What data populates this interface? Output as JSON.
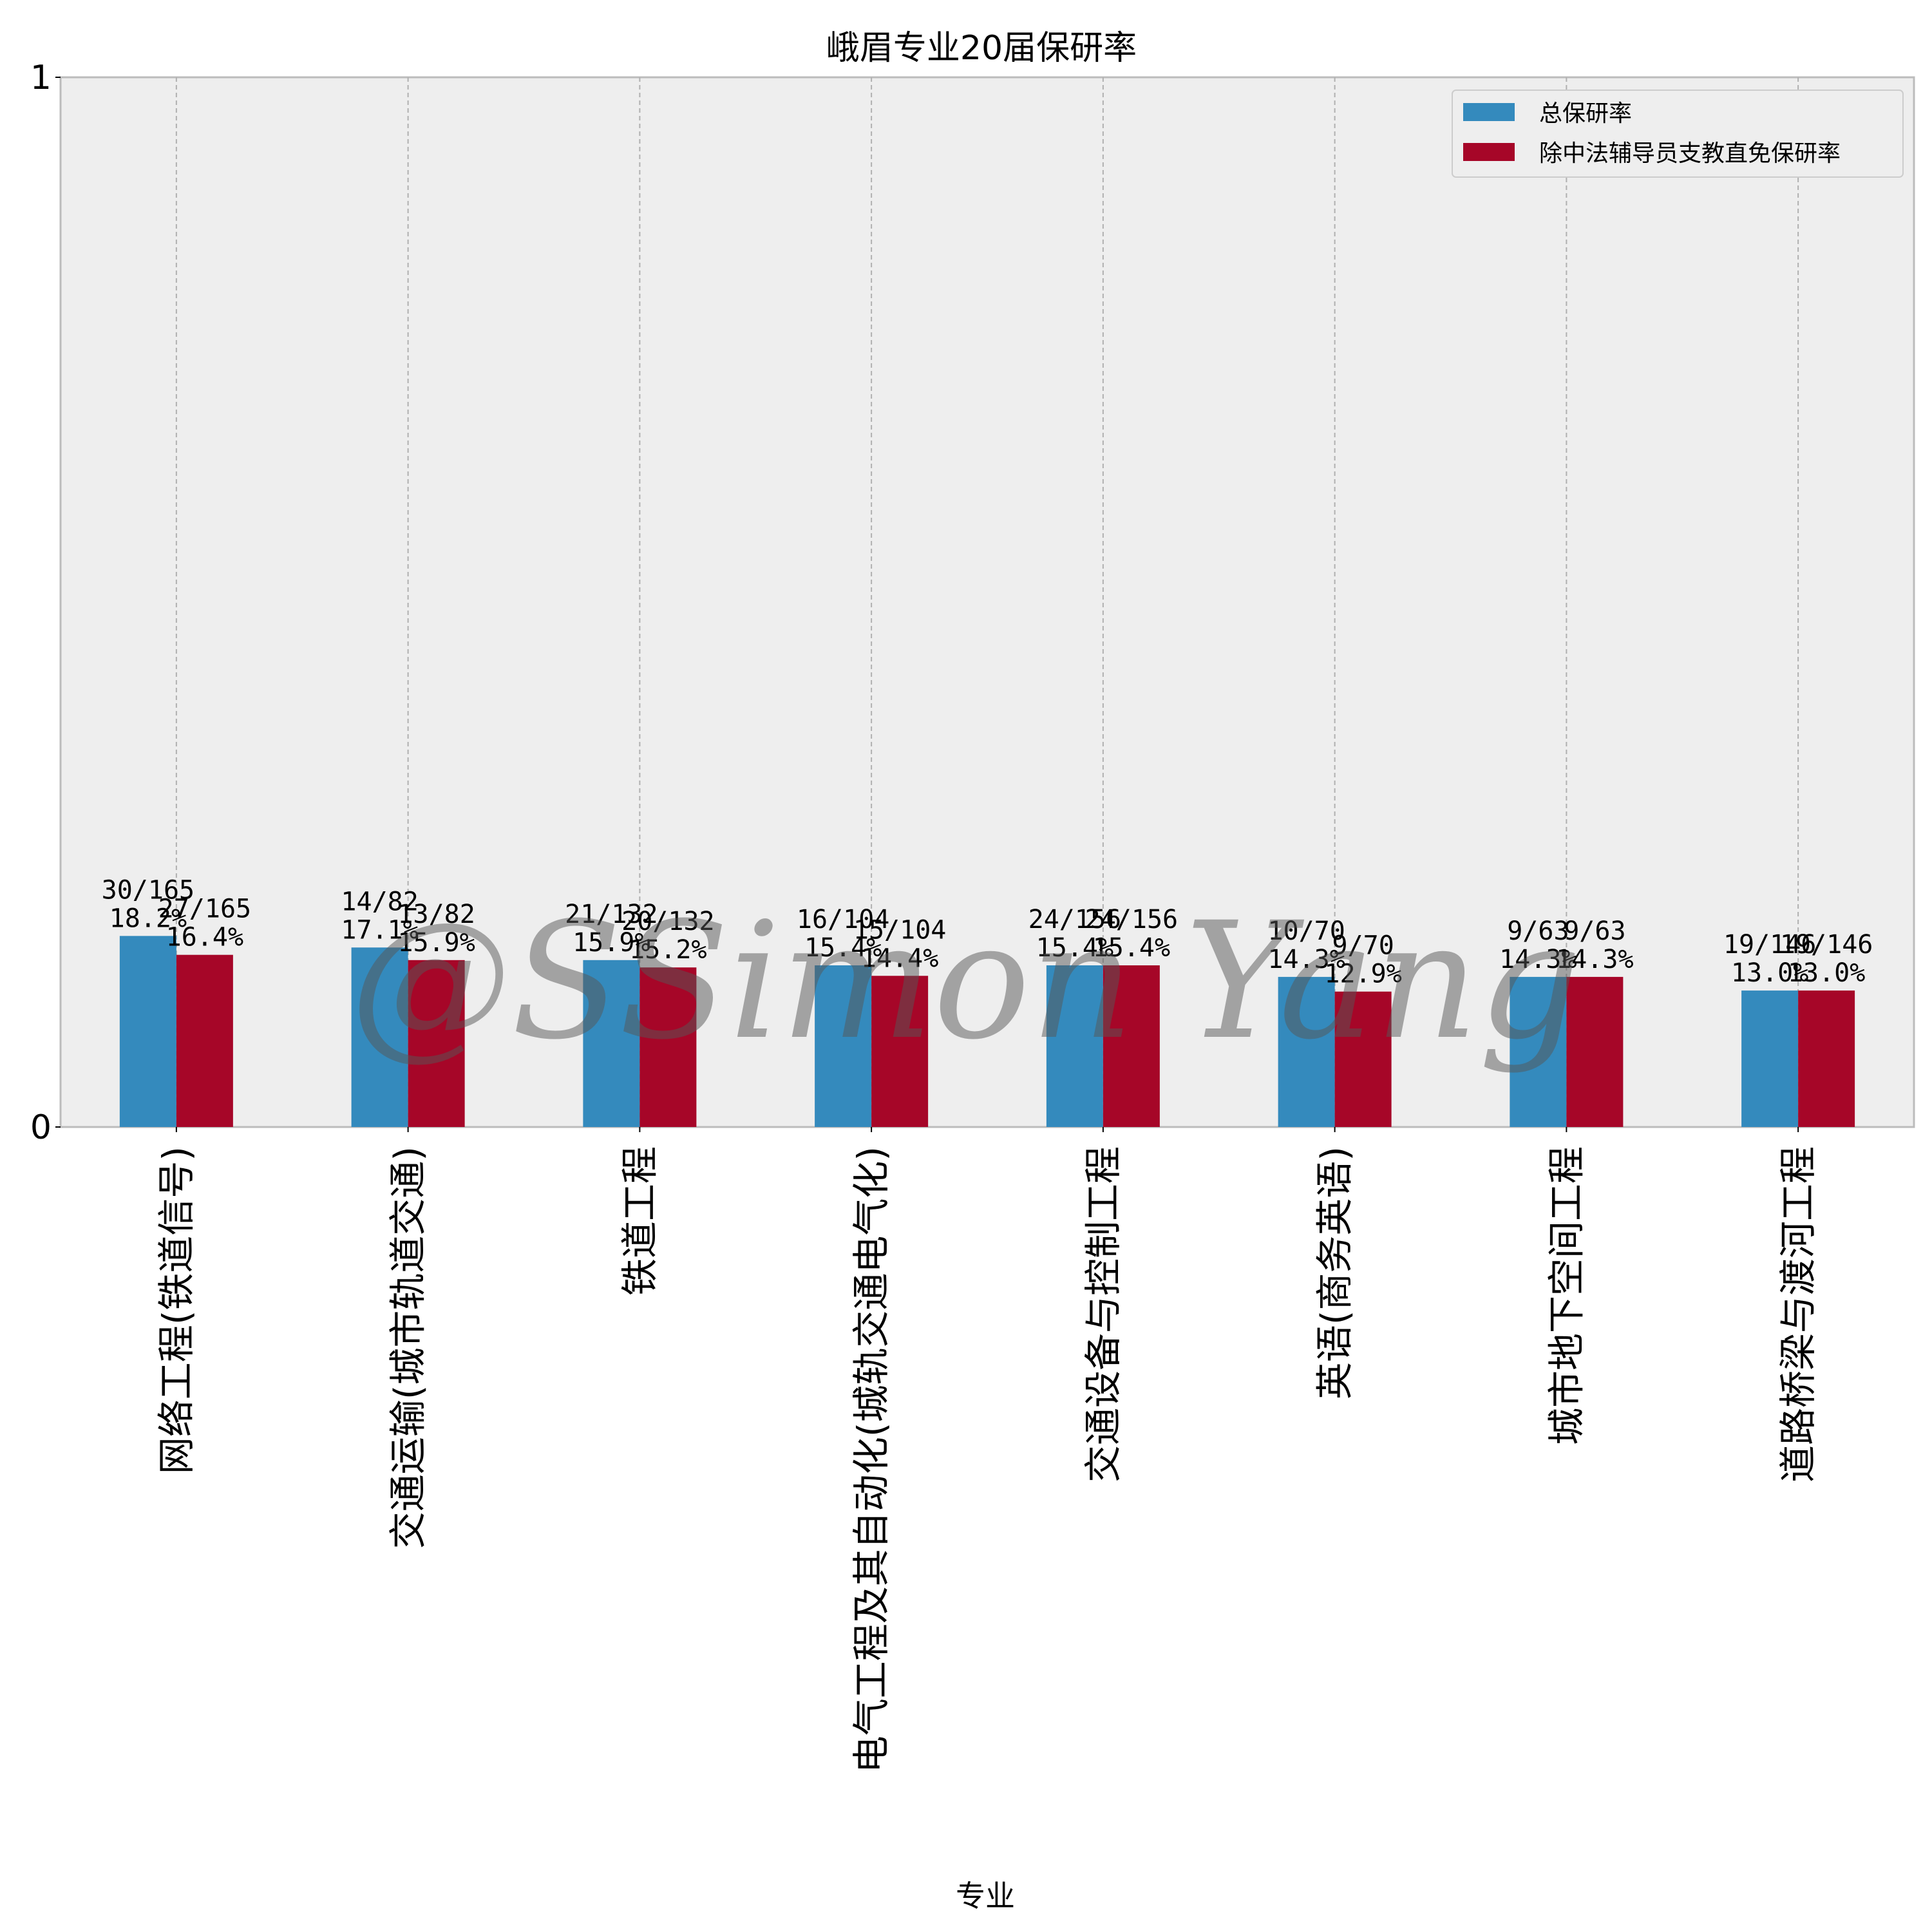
{
  "chart_data": {
    "type": "bar",
    "title": "峨眉专业20届保研率",
    "xlabel": "专业",
    "ylabel": "",
    "ylim": [
      0,
      1
    ],
    "yticks": [
      "0",
      "1"
    ],
    "grid": true,
    "legend_position": "top-right",
    "categories": [
      "网络工程(铁道信号)",
      "交通运输(城市轨道交通)",
      "铁道工程",
      "电气工程及其自动化(城轨交通电气化)",
      "交通设备与控制工程",
      "英语(商务英语)",
      "城市地下空间工程",
      "道路桥梁与渡河工程"
    ],
    "series": [
      {
        "name": "总保研率",
        "color": "#348ABD",
        "values": [
          0.182,
          0.171,
          0.159,
          0.154,
          0.154,
          0.143,
          0.143,
          0.13
        ],
        "fraction_labels": [
          "30/165",
          "14/82",
          "21/132",
          "16/104",
          "24/156",
          "10/70",
          "9/63",
          "19/146"
        ],
        "percent_labels": [
          "18.2%",
          "17.1%",
          "15.9%",
          "15.4%",
          "15.4%",
          "14.3%",
          "14.3%",
          "13.0%"
        ]
      },
      {
        "name": "除中法辅导员支教直免保研率",
        "color": "#A60628",
        "values": [
          0.164,
          0.159,
          0.152,
          0.144,
          0.154,
          0.129,
          0.143,
          0.13
        ],
        "fraction_labels": [
          "27/165",
          "13/82",
          "20/132",
          "15/104",
          "24/156",
          "9/70",
          "9/63",
          "19/146"
        ],
        "percent_labels": [
          "16.4%",
          "15.9%",
          "15.2%",
          "14.4%",
          "15.4%",
          "12.9%",
          "14.3%",
          "13.0%"
        ]
      }
    ],
    "watermark": "@SSimon Yang"
  }
}
